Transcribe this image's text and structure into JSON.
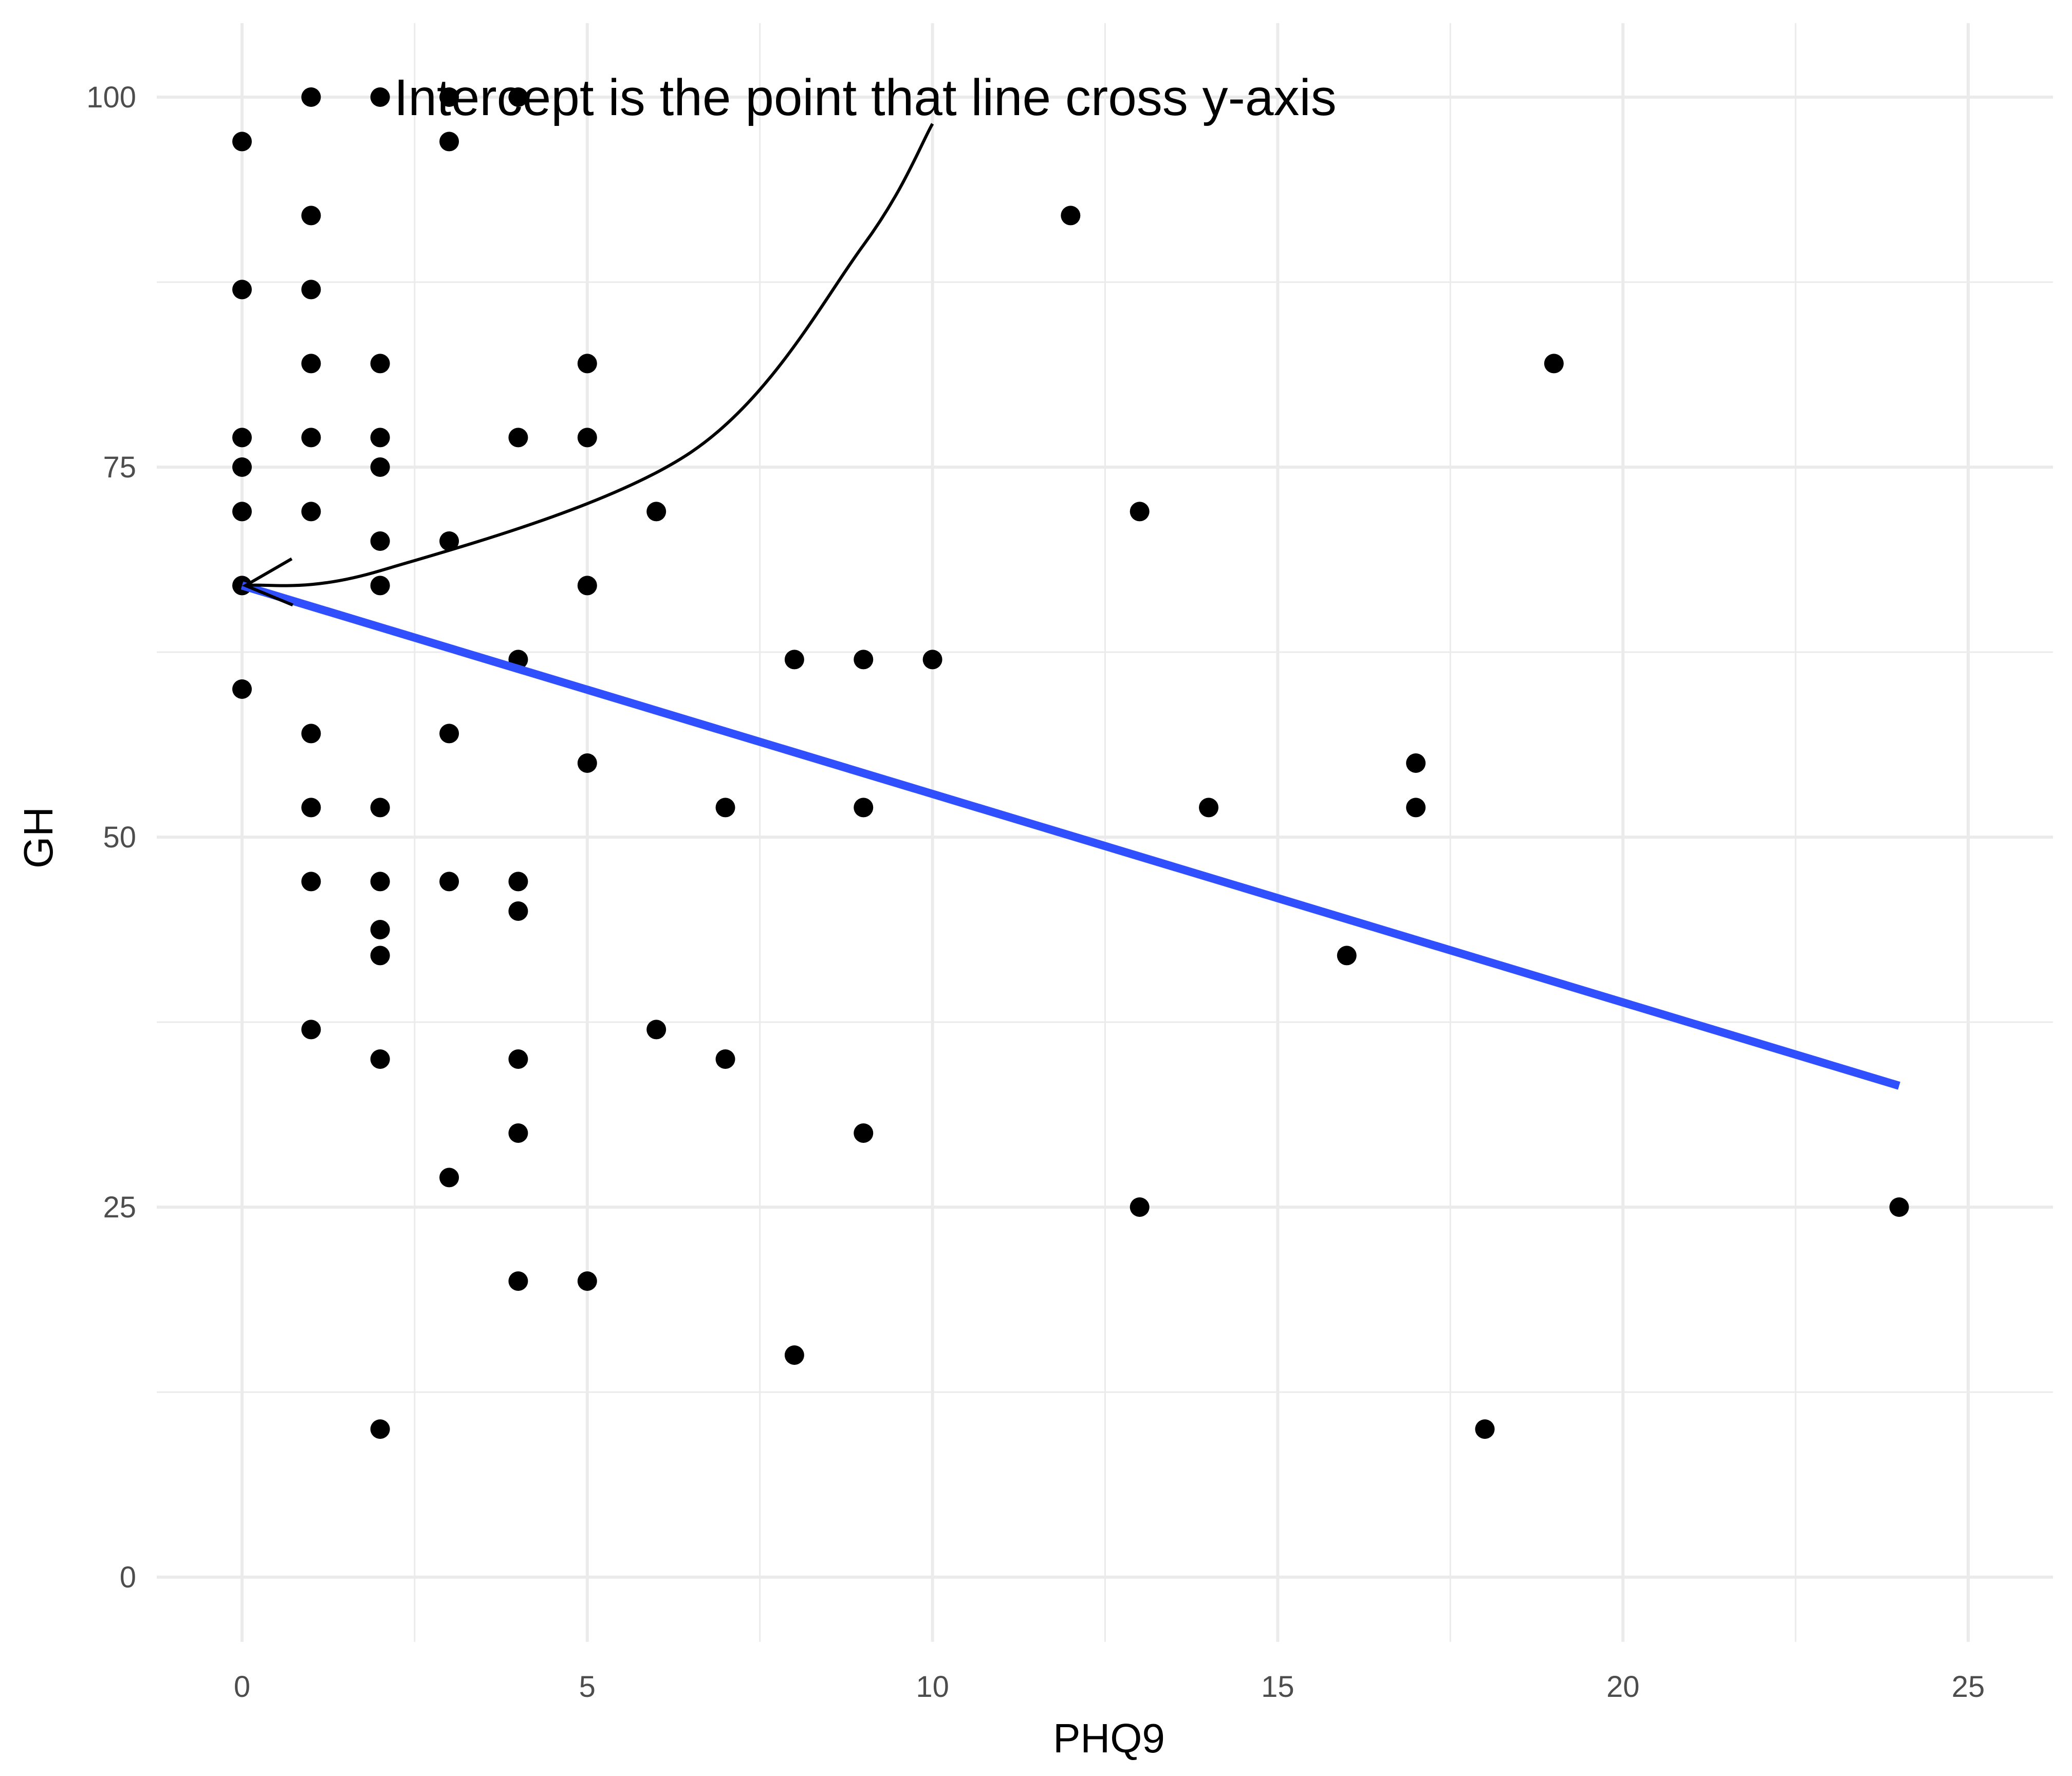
{
  "chart_data": {
    "type": "scatter",
    "xlabel": "PHQ9",
    "ylabel": "GH",
    "xlim": [
      -1.2,
      26.3
    ],
    "ylim": [
      -5,
      105
    ],
    "x_ticks": [
      0,
      5,
      10,
      15,
      20,
      25
    ],
    "y_ticks": [
      0,
      25,
      50,
      75,
      100
    ],
    "x_tick_labels": [
      "0",
      "5",
      "10",
      "15",
      "20",
      "25"
    ],
    "y_tick_labels": [
      "0",
      "25",
      "50",
      "75",
      "100"
    ],
    "grid": true,
    "points": [
      {
        "x": 0,
        "y": 97
      },
      {
        "x": 0,
        "y": 87
      },
      {
        "x": 0,
        "y": 77
      },
      {
        "x": 0,
        "y": 75
      },
      {
        "x": 0,
        "y": 72
      },
      {
        "x": 0,
        "y": 67
      },
      {
        "x": 0,
        "y": 60
      },
      {
        "x": 1,
        "y": 100
      },
      {
        "x": 1,
        "y": 92
      },
      {
        "x": 1,
        "y": 87
      },
      {
        "x": 1,
        "y": 82
      },
      {
        "x": 1,
        "y": 77
      },
      {
        "x": 1,
        "y": 72
      },
      {
        "x": 1,
        "y": 57
      },
      {
        "x": 1,
        "y": 52
      },
      {
        "x": 1,
        "y": 47
      },
      {
        "x": 1,
        "y": 37
      },
      {
        "x": 2,
        "y": 100
      },
      {
        "x": 2,
        "y": 82
      },
      {
        "x": 2,
        "y": 77
      },
      {
        "x": 2,
        "y": 75
      },
      {
        "x": 2,
        "y": 70
      },
      {
        "x": 2,
        "y": 67
      },
      {
        "x": 2,
        "y": 52
      },
      {
        "x": 2,
        "y": 47
      },
      {
        "x": 2,
        "y": 43.75
      },
      {
        "x": 2,
        "y": 42
      },
      {
        "x": 2,
        "y": 35
      },
      {
        "x": 2,
        "y": 10
      },
      {
        "x": 3,
        "y": 100
      },
      {
        "x": 3,
        "y": 97
      },
      {
        "x": 3,
        "y": 70
      },
      {
        "x": 3,
        "y": 57
      },
      {
        "x": 3,
        "y": 47
      },
      {
        "x": 3,
        "y": 27
      },
      {
        "x": 4,
        "y": 100
      },
      {
        "x": 4,
        "y": 77
      },
      {
        "x": 4,
        "y": 62
      },
      {
        "x": 4,
        "y": 47
      },
      {
        "x": 4,
        "y": 45
      },
      {
        "x": 4,
        "y": 35
      },
      {
        "x": 4,
        "y": 30
      },
      {
        "x": 4,
        "y": 20
      },
      {
        "x": 5,
        "y": 82
      },
      {
        "x": 5,
        "y": 77
      },
      {
        "x": 5,
        "y": 67
      },
      {
        "x": 5,
        "y": 55
      },
      {
        "x": 5,
        "y": 20
      },
      {
        "x": 6,
        "y": 72
      },
      {
        "x": 6,
        "y": 37
      },
      {
        "x": 7,
        "y": 52
      },
      {
        "x": 7,
        "y": 35
      },
      {
        "x": 8,
        "y": 62
      },
      {
        "x": 8,
        "y": 15
      },
      {
        "x": 9,
        "y": 62
      },
      {
        "x": 9,
        "y": 52
      },
      {
        "x": 9,
        "y": 30
      },
      {
        "x": 10,
        "y": 62
      },
      {
        "x": 12,
        "y": 92
      },
      {
        "x": 13,
        "y": 72
      },
      {
        "x": 13,
        "y": 25
      },
      {
        "x": 14,
        "y": 52
      },
      {
        "x": 16,
        "y": 42
      },
      {
        "x": 17,
        "y": 55
      },
      {
        "x": 17,
        "y": 52
      },
      {
        "x": 18,
        "y": 10
      },
      {
        "x": 19,
        "y": 82
      },
      {
        "x": 24,
        "y": 25
      }
    ],
    "regression_line": {
      "color": "#3050ff",
      "x": [
        0,
        24
      ],
      "y": [
        67.0,
        33.2
      ]
    },
    "annotation": {
      "text": "Intercept is the point that line cross y-axis",
      "text_anchor_data": {
        "x": 2.2,
        "y": 100
      },
      "arrow_path_data": [
        {
          "x": 10.0,
          "y": 98.2
        },
        {
          "x": 9.0,
          "y": 90.0
        },
        {
          "x": 6.5,
          "y": 76.0
        },
        {
          "x": 2.0,
          "y": 68.0
        },
        {
          "x": 0.05,
          "y": 67.0
        }
      ]
    }
  }
}
